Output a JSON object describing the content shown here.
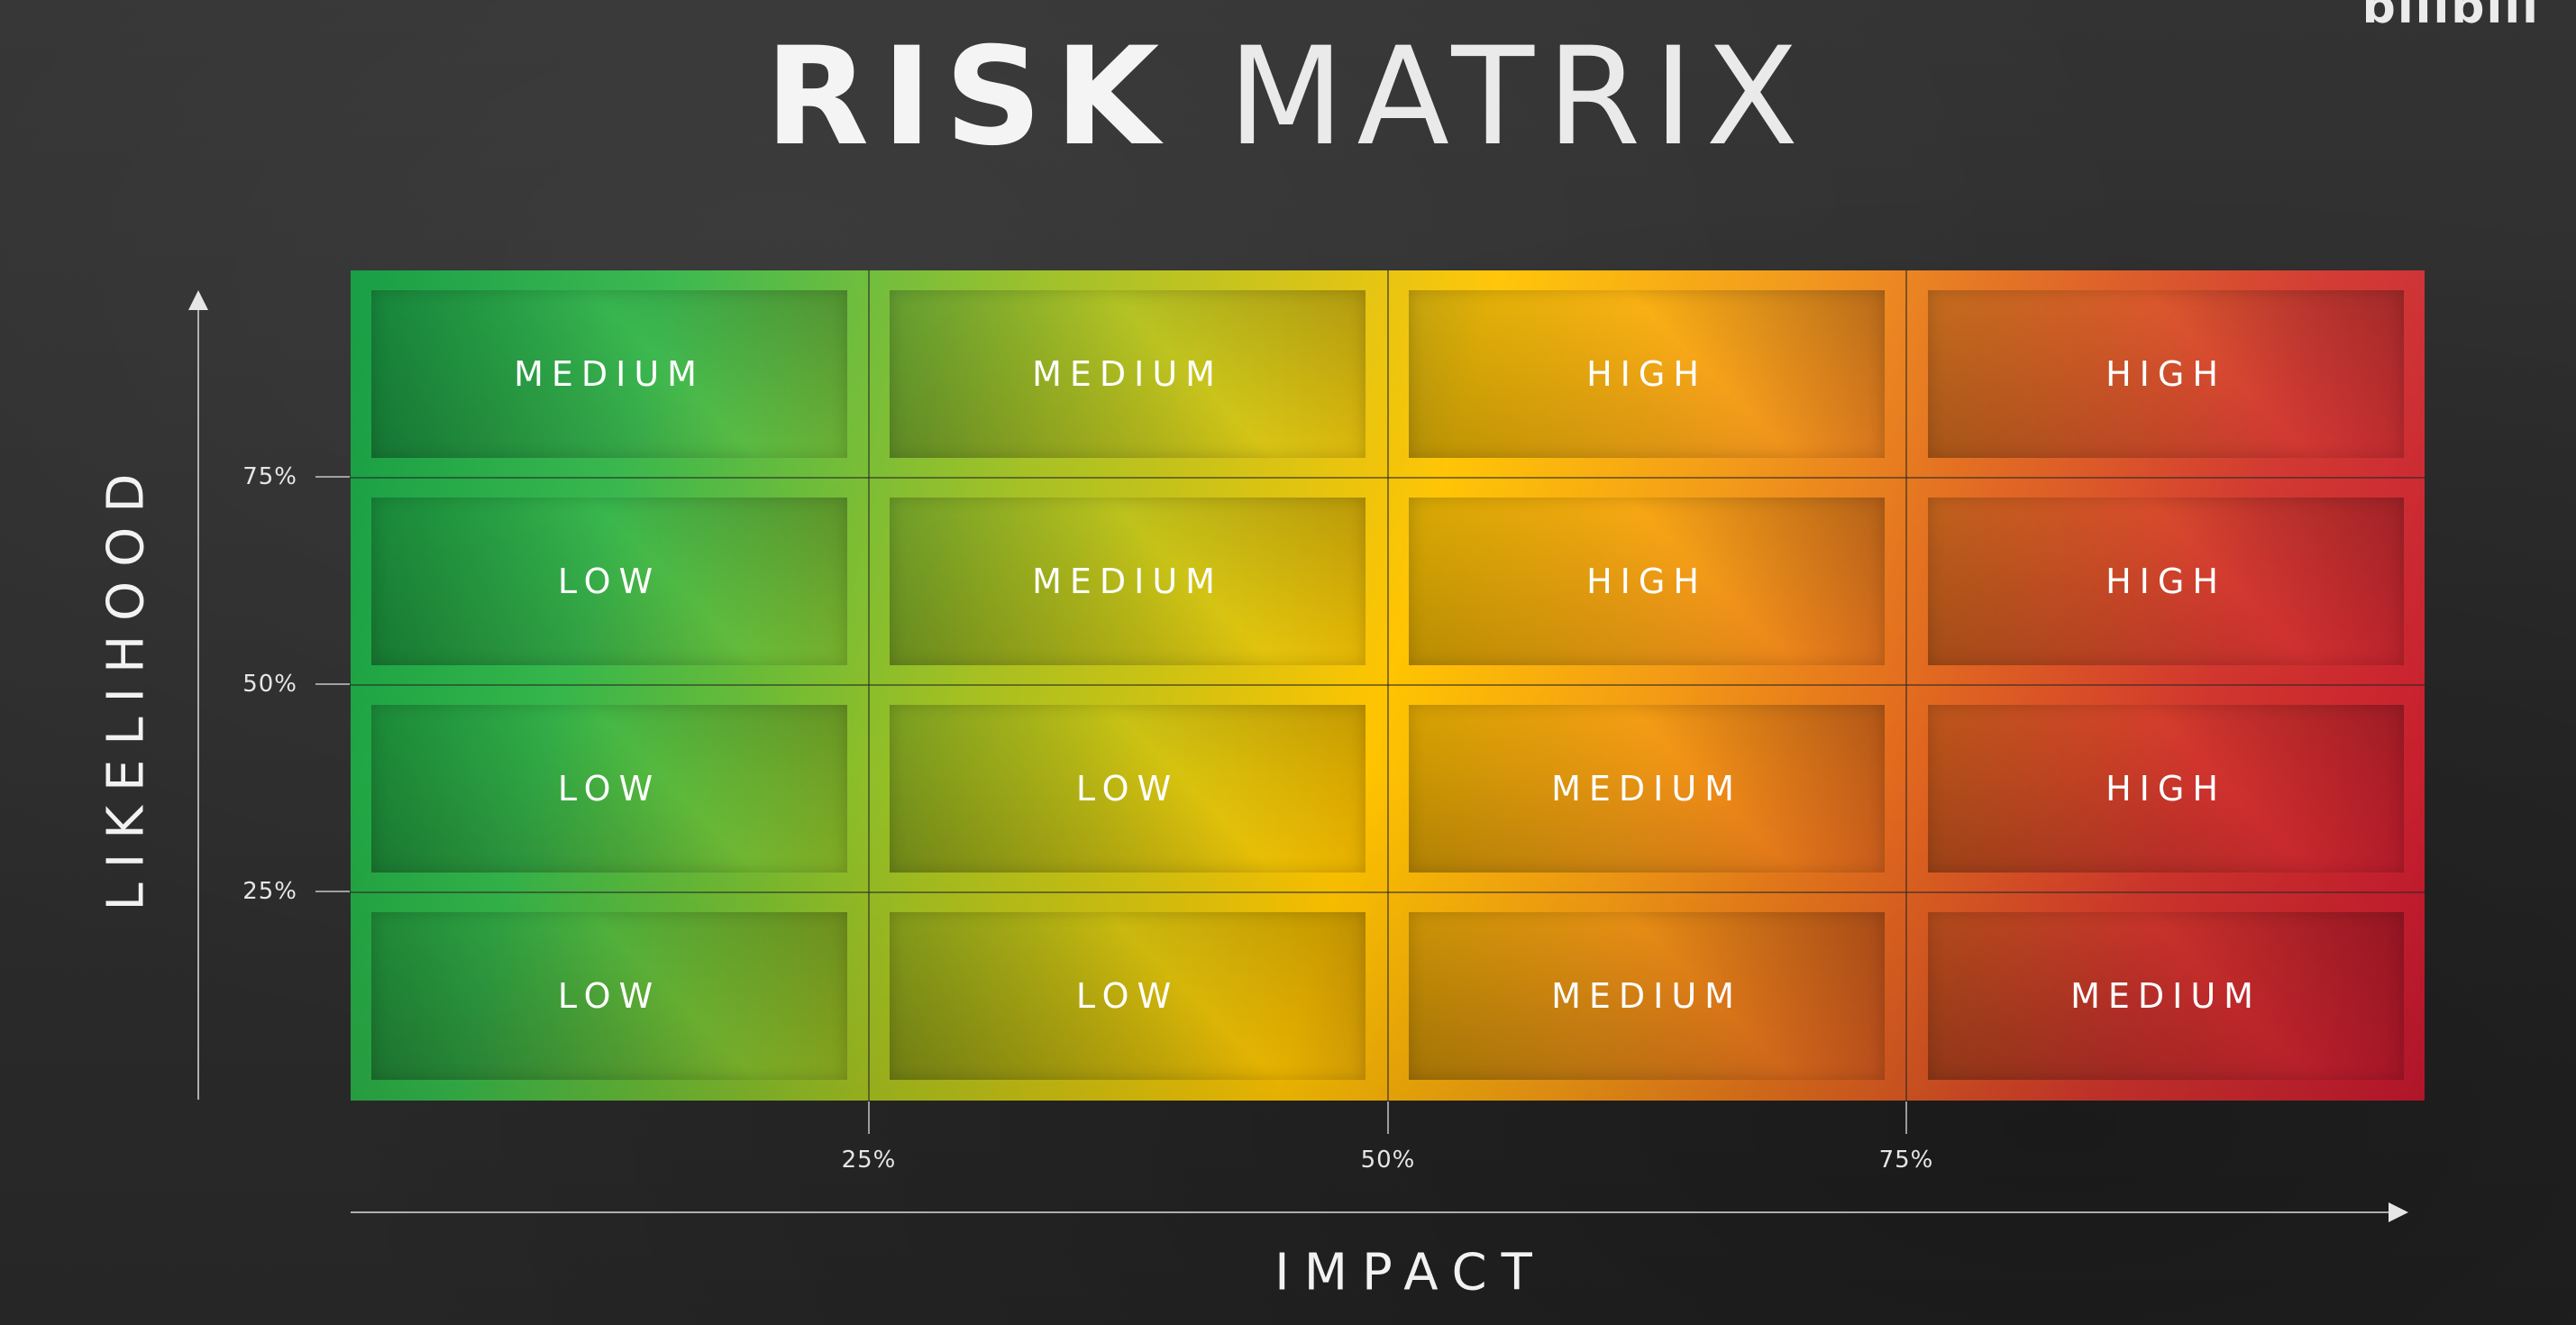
{
  "title": {
    "bold": "RISK",
    "light": "MATRIX"
  },
  "corner_mark": "bilibili",
  "axes": {
    "y_label": "LIKELIHOOD",
    "x_label": "IMPACT",
    "y_ticks": [
      "75%",
      "50%",
      "25%"
    ],
    "x_ticks": [
      "25%",
      "50%",
      "75%"
    ]
  },
  "matrix": {
    "rows": [
      [
        "MEDIUM",
        "MEDIUM",
        "HIGH",
        "HIGH"
      ],
      [
        "LOW",
        "MEDIUM",
        "HIGH",
        "HIGH"
      ],
      [
        "LOW",
        "LOW",
        "MEDIUM",
        "HIGH"
      ],
      [
        "LOW",
        "LOW",
        "MEDIUM",
        "MEDIUM"
      ]
    ]
  },
  "colors": {
    "low": "#109a3f",
    "medium": "#ffc400",
    "high": "#c4172f",
    "background": "#2c2c2c"
  }
}
